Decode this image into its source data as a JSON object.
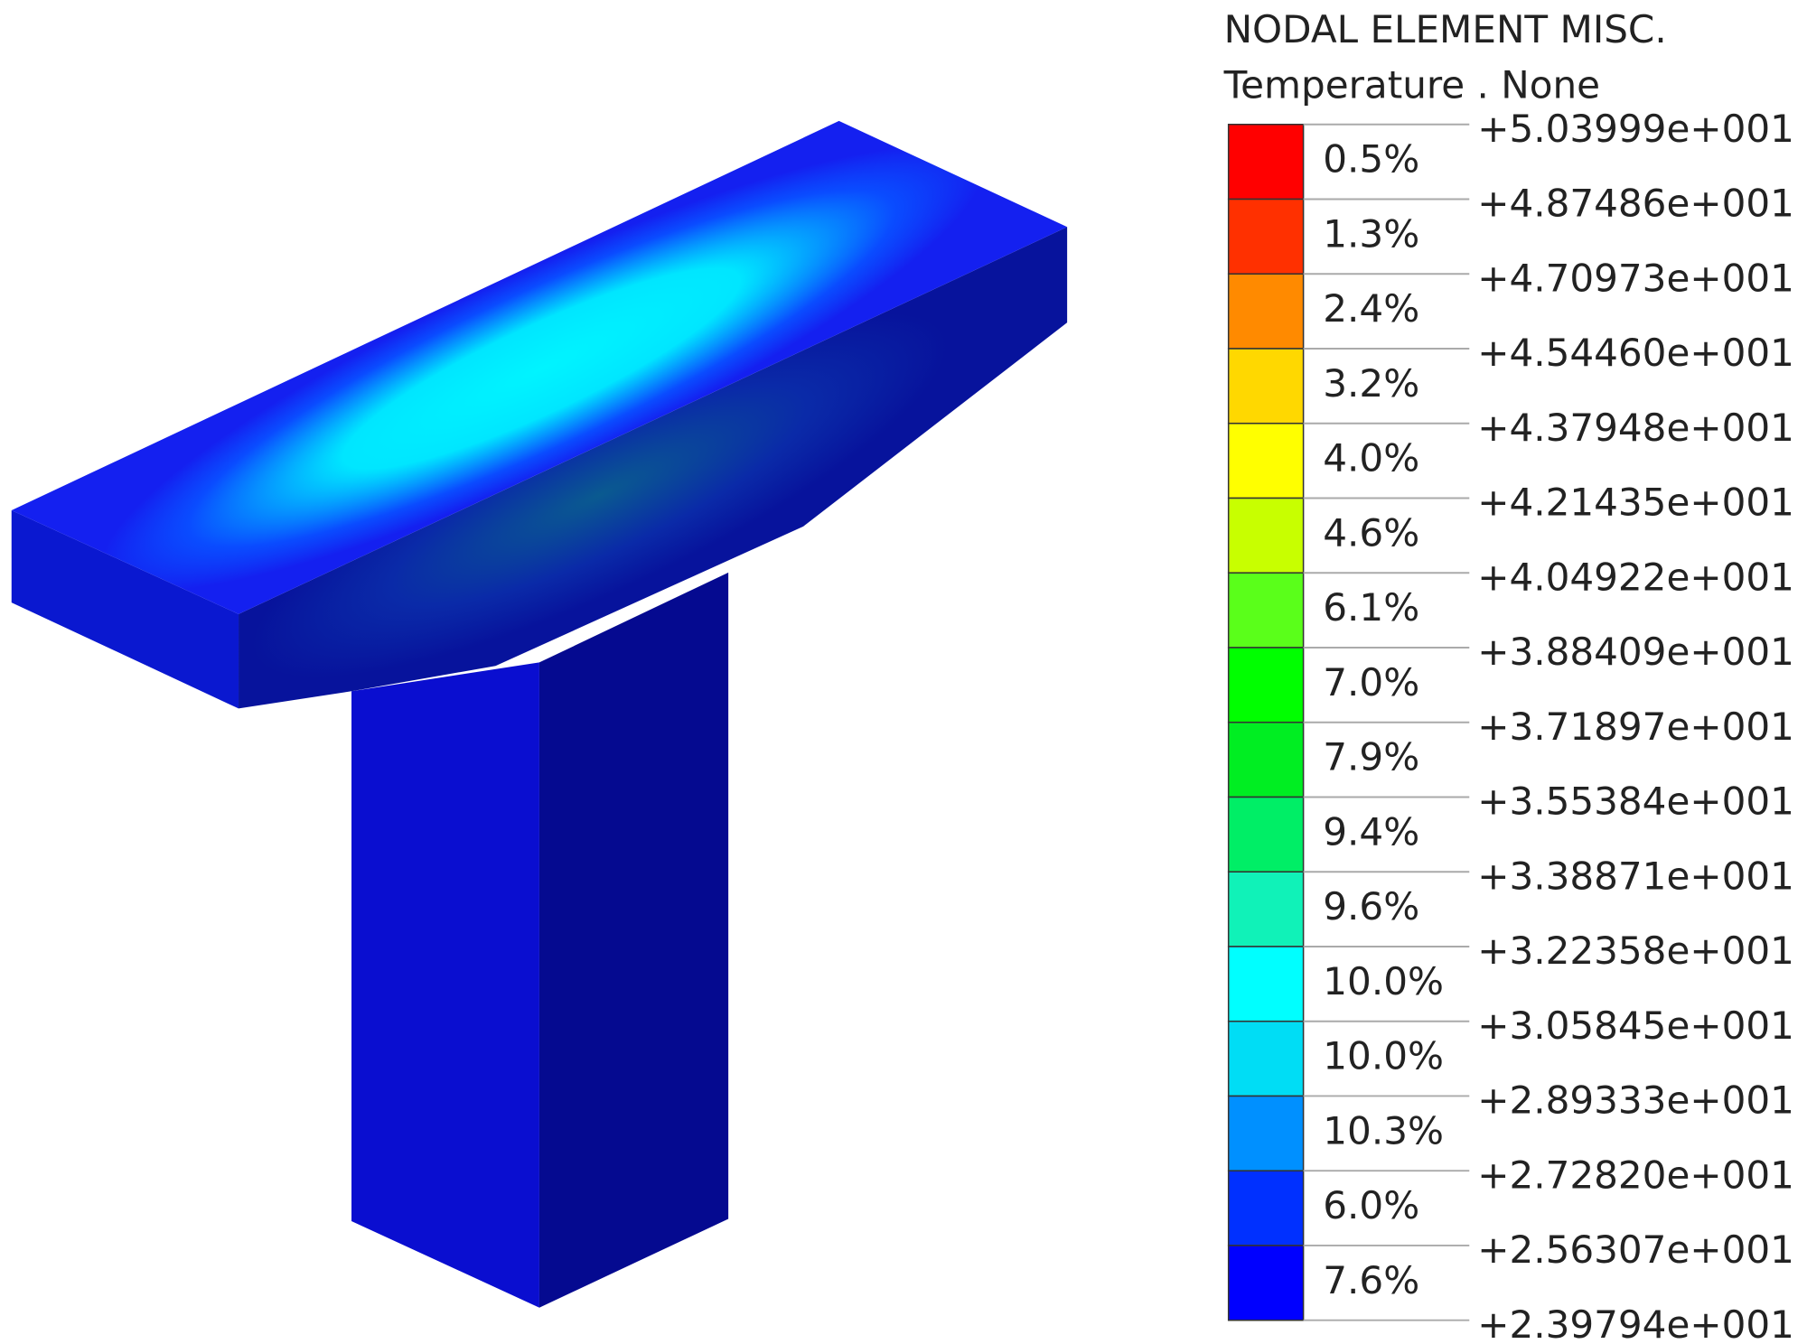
{
  "legend": {
    "title": "NODAL ELEMENT MISC.",
    "subtitle": "Temperature . None",
    "bands": [
      {
        "percent": "0.5%",
        "color": "#ff0000"
      },
      {
        "percent": "1.3%",
        "color": "#ff3000"
      },
      {
        "percent": "2.4%",
        "color": "#ff8a00"
      },
      {
        "percent": "3.2%",
        "color": "#ffd800"
      },
      {
        "percent": "4.0%",
        "color": "#ffff00"
      },
      {
        "percent": "4.6%",
        "color": "#c8ff00"
      },
      {
        "percent": "6.1%",
        "color": "#5aff1a"
      },
      {
        "percent": "7.0%",
        "color": "#00ff00"
      },
      {
        "percent": "7.9%",
        "color": "#00ee22"
      },
      {
        "percent": "9.4%",
        "color": "#00ee66"
      },
      {
        "percent": "9.6%",
        "color": "#10f2b8"
      },
      {
        "percent": "10.0%",
        "color": "#00ffff"
      },
      {
        "percent": "10.0%",
        "color": "#00ddf5"
      },
      {
        "percent": "10.3%",
        "color": "#0090ff"
      },
      {
        "percent": "6.0%",
        "color": "#0030ff"
      },
      {
        "percent": "7.6%",
        "color": "#0000ff"
      }
    ],
    "levels": [
      "+5.03999e+001",
      "+4.87486e+001",
      "+4.70973e+001",
      "+4.54460e+001",
      "+4.37948e+001",
      "+4.21435e+001",
      "+4.04922e+001",
      "+3.88409e+001",
      "+3.71897e+001",
      "+3.55384e+001",
      "+3.38871e+001",
      "+3.22358e+001",
      "+3.05845e+001",
      "+2.89333e+001",
      "+2.72820e+001",
      "+2.56307e+001",
      "+2.39794e+001"
    ]
  }
}
